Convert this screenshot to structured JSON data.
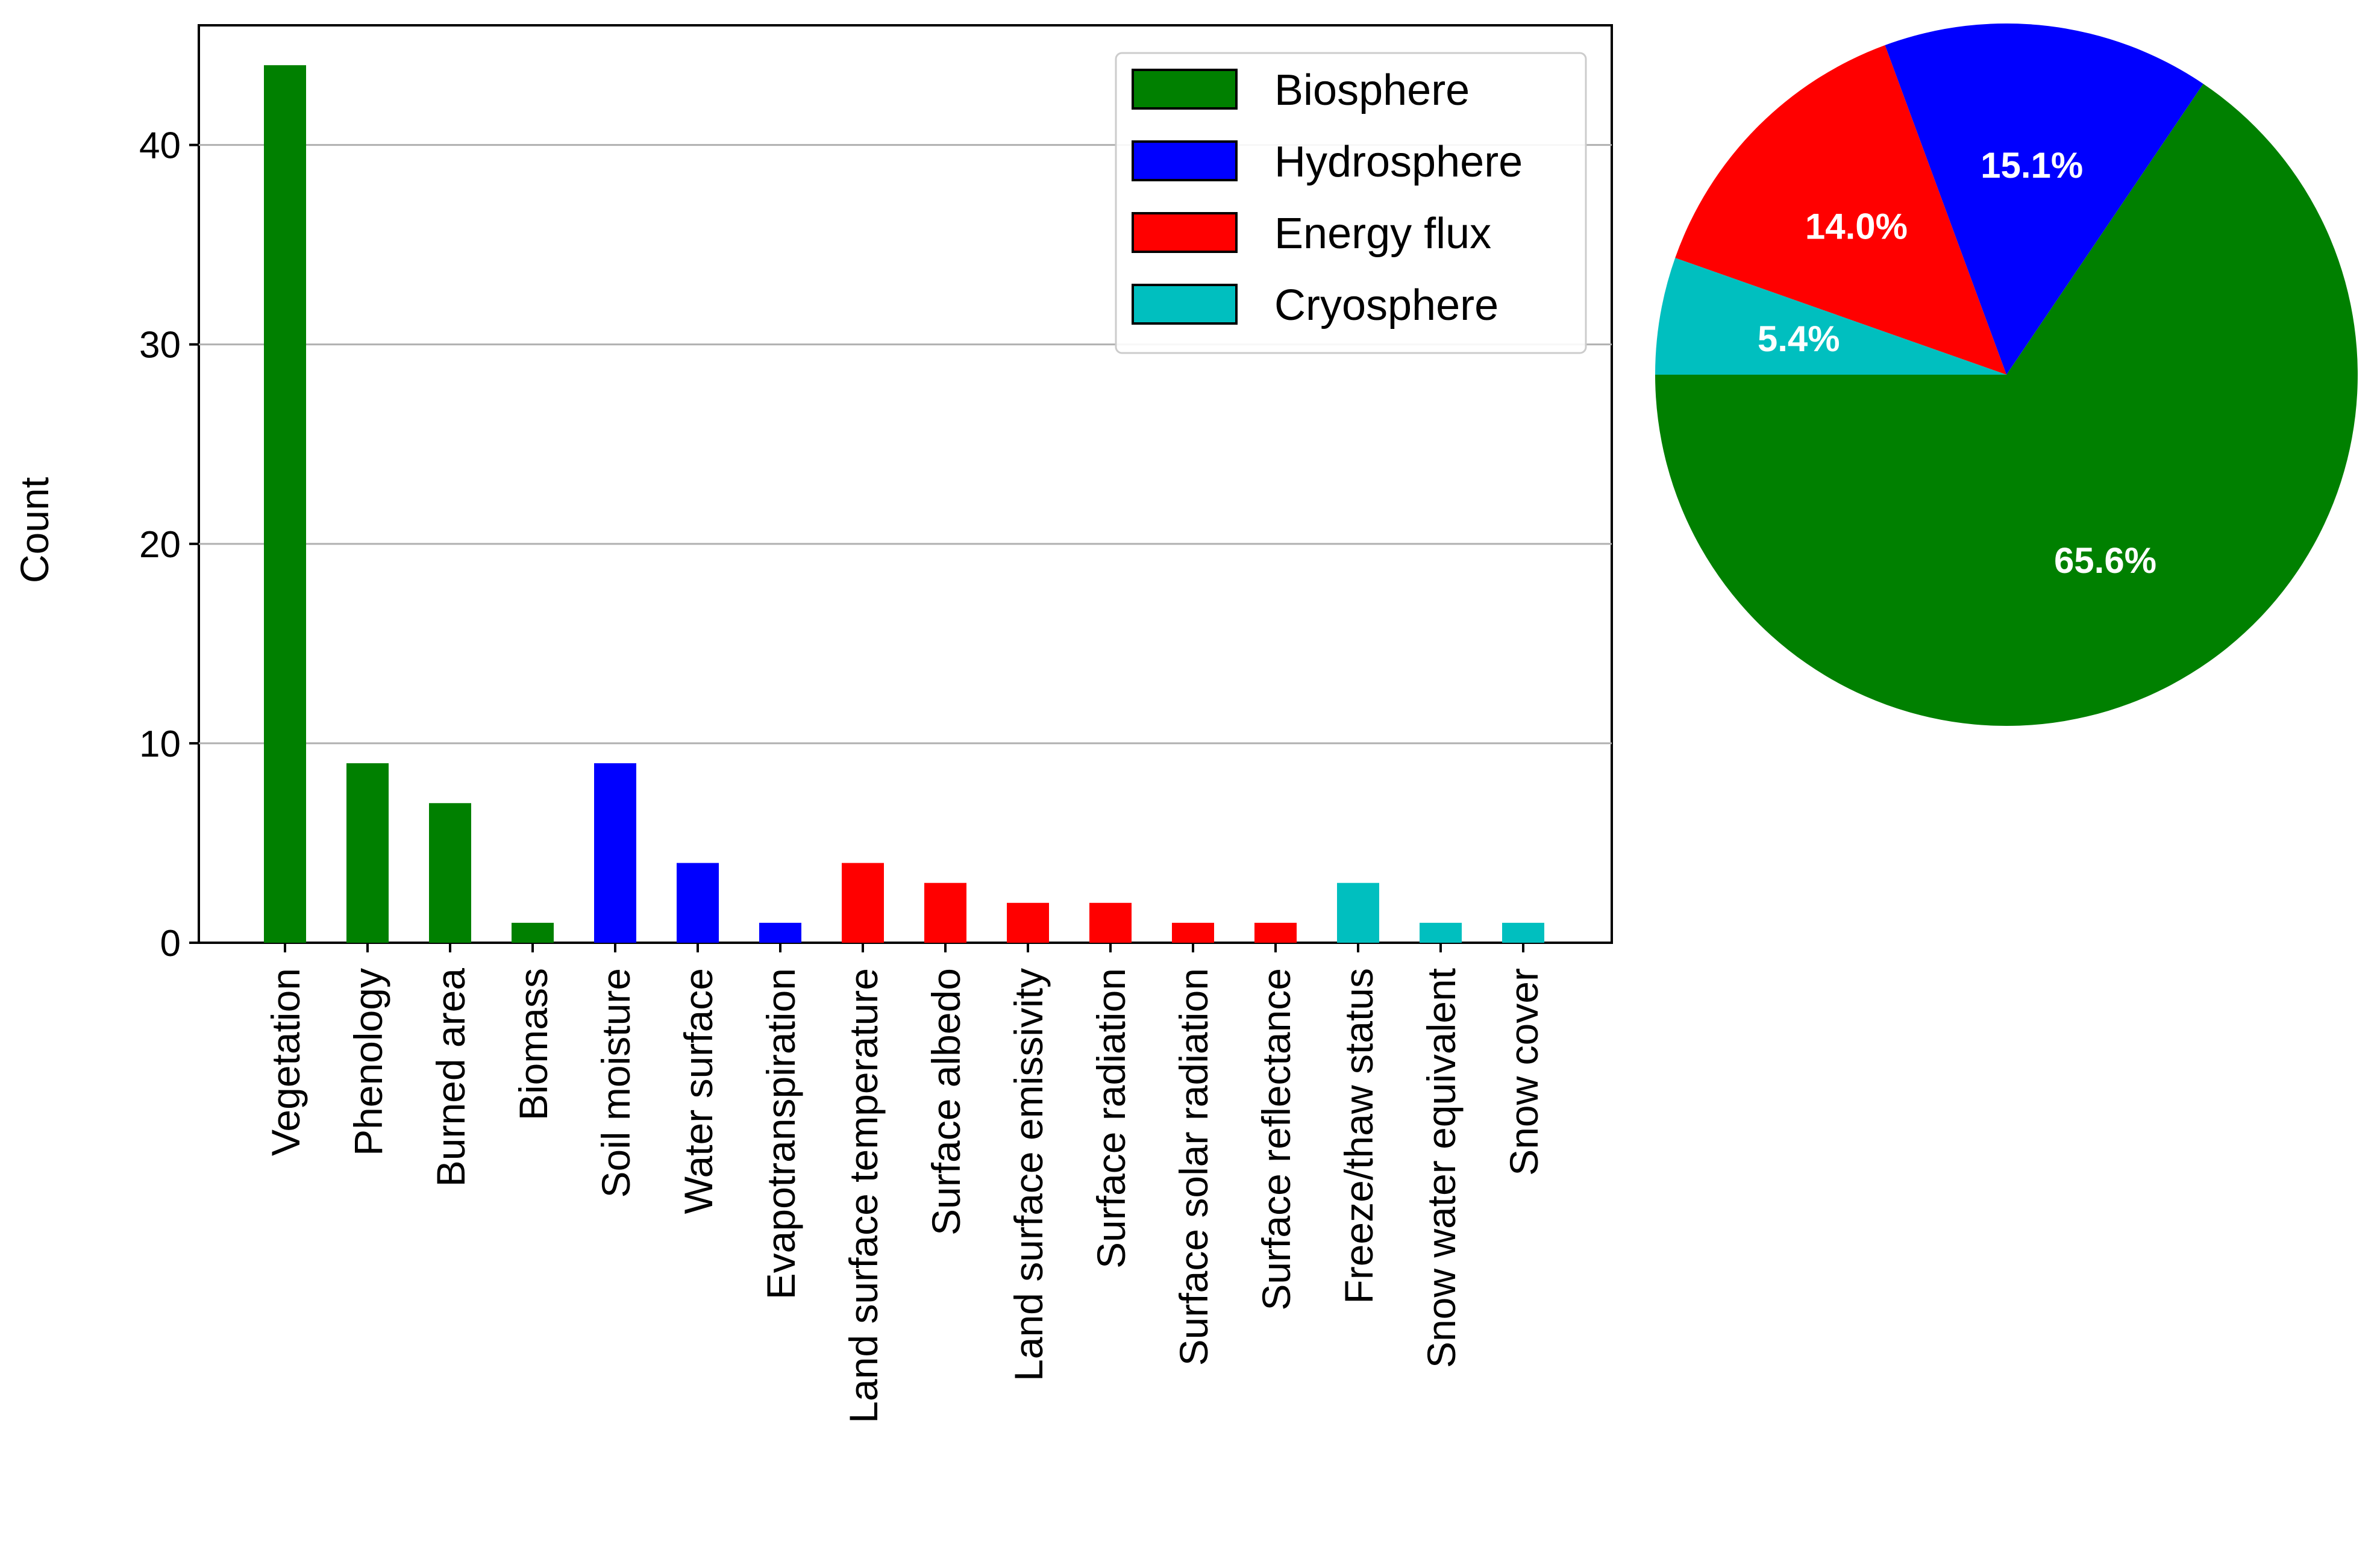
{
  "chart_data": [
    {
      "type": "bar",
      "ylabel": "Count",
      "xlabel": "",
      "ylim": [
        0,
        46
      ],
      "yticks": [
        0,
        10,
        20,
        30,
        40
      ],
      "grid": "horizontal",
      "legend_placement": "top-right",
      "legend": [
        {
          "name": "Biosphere",
          "color": "#008000"
        },
        {
          "name": "Hydrosphere",
          "color": "#0000ff"
        },
        {
          "name": "Energy flux",
          "color": "#ff0000"
        },
        {
          "name": "Cryosphere",
          "color": "#00bfbf"
        }
      ],
      "categories": [
        "Vegetation",
        "Phenology",
        "Burned area",
        "Biomass",
        "Soil moisture",
        "Water surface",
        "Evapotranspiration",
        "Land surface temperature",
        "Surface albedo",
        "Land surface emissivity",
        "Surface radiation",
        "Surface solar radiation",
        "Surface reflectance",
        "Freeze/thaw status",
        "Snow water equivalent",
        "Snow cover"
      ],
      "values": [
        44,
        9,
        7,
        1,
        9,
        4,
        1,
        4,
        3,
        2,
        2,
        1,
        1,
        3,
        1,
        1
      ],
      "bar_colors": [
        "#008000",
        "#008000",
        "#008000",
        "#008000",
        "#0000ff",
        "#0000ff",
        "#0000ff",
        "#ff0000",
        "#ff0000",
        "#ff0000",
        "#ff0000",
        "#ff0000",
        "#ff0000",
        "#00bfbf",
        "#00bfbf",
        "#00bfbf"
      ]
    },
    {
      "type": "pie",
      "slices": [
        {
          "label": "65.6%",
          "value": 65.6,
          "color": "#008000",
          "group": "Biosphere"
        },
        {
          "label": "15.1%",
          "value": 15.1,
          "color": "#0000ff",
          "group": "Hydrosphere"
        },
        {
          "label": "14.0%",
          "value": 14.0,
          "color": "#ff0000",
          "group": "Energy flux"
        },
        {
          "label": "5.4%",
          "value": 5.4,
          "color": "#00bfbf",
          "group": "Cryosphere"
        }
      ]
    }
  ]
}
